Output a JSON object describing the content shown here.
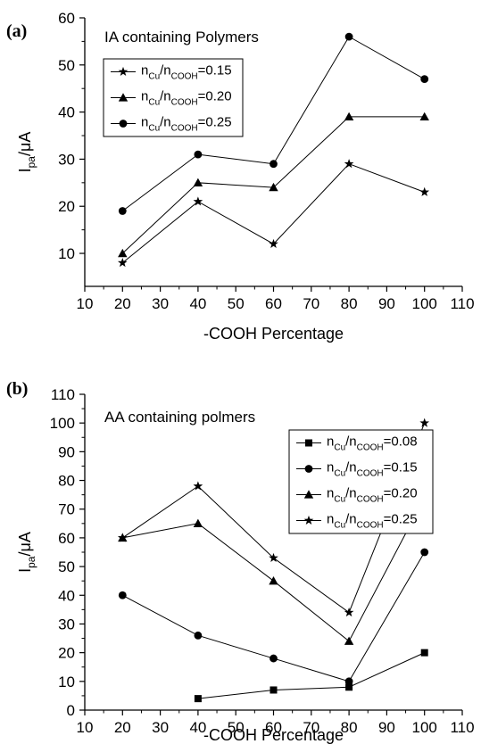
{
  "chart_data": [
    {
      "type": "line",
      "panel": "(a)",
      "annotation": "IA containing Polymers",
      "xlabel": "-COOH Percentage",
      "ylabel": {
        "main": "I",
        "sub": "pa",
        "unit": "/μA"
      },
      "xlim": [
        10,
        110
      ],
      "ylim": [
        3,
        60
      ],
      "xticks": [
        10,
        20,
        30,
        40,
        50,
        60,
        70,
        80,
        90,
        100,
        110
      ],
      "yticks": [
        10,
        20,
        30,
        40,
        50,
        60
      ],
      "legend_position": "top-left",
      "x": [
        20,
        40,
        60,
        80,
        100
      ],
      "series": [
        {
          "name": "nCu/nCOOH=0.15",
          "label_parts": [
            "n",
            "Cu",
            "/n",
            "COOH",
            "=0.15"
          ],
          "marker": "star",
          "values": [
            8,
            21,
            12,
            29,
            23
          ]
        },
        {
          "name": "nCu/nCOOH=0.20",
          "label_parts": [
            "n",
            "Cu",
            "/n",
            "COOH",
            "=0.20"
          ],
          "marker": "triangle",
          "values": [
            10,
            25,
            24,
            39,
            39
          ]
        },
        {
          "name": "nCu/nCOOH=0.25",
          "label_parts": [
            "n",
            "Cu",
            "/n",
            "COOH",
            "=0.25"
          ],
          "marker": "circle",
          "values": [
            19,
            31,
            29,
            56,
            47
          ]
        }
      ]
    },
    {
      "type": "line",
      "panel": "(b)",
      "annotation": "AA containing polmers",
      "xlabel": "-COOH Percentage",
      "ylabel": {
        "main": "I",
        "sub": "pa",
        "unit": "/μA"
      },
      "xlim": [
        10,
        110
      ],
      "ylim": [
        0,
        110
      ],
      "xticks": [
        10,
        20,
        30,
        40,
        50,
        60,
        70,
        80,
        90,
        100,
        110
      ],
      "yticks": [
        0,
        10,
        20,
        30,
        40,
        50,
        60,
        70,
        80,
        90,
        100,
        110
      ],
      "legend_position": "top-right",
      "series": [
        {
          "name": "nCu/nCOOH=0.08",
          "label_parts": [
            "n",
            "Cu",
            "/n",
            "COOH",
            "=0.08"
          ],
          "marker": "square",
          "x": [
            40,
            60,
            80,
            100
          ],
          "values": [
            4,
            7,
            8,
            20
          ]
        },
        {
          "name": "nCu/nCOOH=0.15",
          "label_parts": [
            "n",
            "Cu",
            "/n",
            "COOH",
            "=0.15"
          ],
          "marker": "circle",
          "x": [
            20,
            40,
            60,
            80,
            100
          ],
          "values": [
            40,
            26,
            18,
            10,
            55
          ]
        },
        {
          "name": "nCu/nCOOH=0.20",
          "label_parts": [
            "n",
            "Cu",
            "/n",
            "COOH",
            "=0.20"
          ],
          "marker": "triangle",
          "x": [
            20,
            40,
            60,
            80,
            100
          ],
          "values": [
            60,
            65,
            45,
            24,
            74
          ]
        },
        {
          "name": "nCu/nCOOH=0.25",
          "label_parts": [
            "n",
            "Cu",
            "/n",
            "COOH",
            "=0.25"
          ],
          "marker": "star",
          "x": [
            20,
            40,
            60,
            80,
            100
          ],
          "values": [
            60,
            78,
            53,
            34,
            100
          ]
        }
      ]
    }
  ]
}
